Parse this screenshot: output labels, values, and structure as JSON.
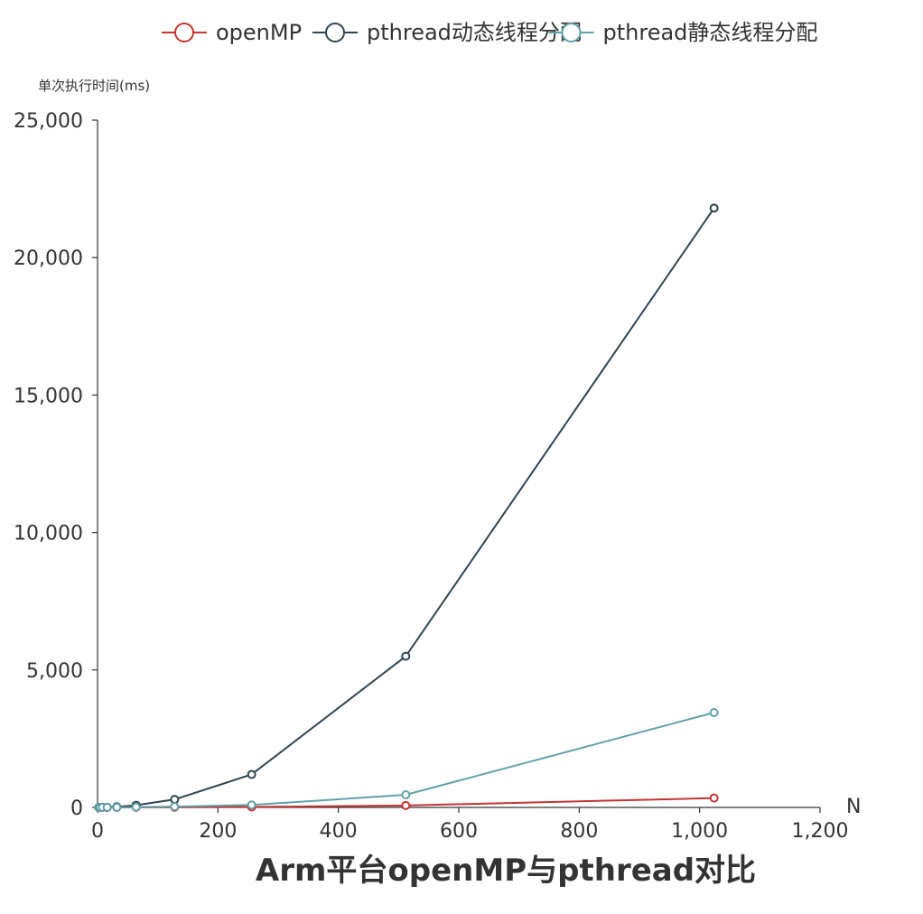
{
  "chart_data": {
    "type": "line",
    "title": "Arm平台openMP与pthread对比",
    "xlabel": "N",
    "ylabel": "单次执行时间(ms)",
    "xlim": [
      0,
      1200
    ],
    "ylim": [
      0,
      25000
    ],
    "x_ticks": [
      0,
      200,
      400,
      600,
      800,
      1000,
      1200
    ],
    "y_ticks": [
      0,
      5000,
      10000,
      15000,
      20000,
      25000
    ],
    "x_tick_labels": [
      "0",
      "200",
      "400",
      "600",
      "800",
      "1,000",
      "1,200"
    ],
    "y_tick_labels": [
      "0",
      "5,000",
      "10,000",
      "15,000",
      "20,000",
      "25,000"
    ],
    "grid": false,
    "legend_position": "top-center",
    "series": [
      {
        "name": "openMP",
        "color": "#c23531",
        "points": [
          [
            2,
            0
          ],
          [
            4,
            0
          ],
          [
            8,
            1
          ],
          [
            16,
            1
          ],
          [
            32,
            2
          ],
          [
            64,
            4
          ],
          [
            128,
            8
          ],
          [
            256,
            18
          ],
          [
            512,
            70
          ],
          [
            1024,
            340
          ]
        ]
      },
      {
        "name": "pthread动态线程分配",
        "color": "#2f4554",
        "points": [
          [
            2,
            1
          ],
          [
            4,
            2
          ],
          [
            8,
            5
          ],
          [
            16,
            10
          ],
          [
            32,
            25
          ],
          [
            64,
            80
          ],
          [
            128,
            290
          ],
          [
            256,
            1200
          ],
          [
            512,
            5500
          ],
          [
            1024,
            21800
          ]
        ]
      },
      {
        "name": "pthread静态线程分配",
        "color": "#61a0a8",
        "points": [
          [
            2,
            0
          ],
          [
            4,
            1
          ],
          [
            8,
            2
          ],
          [
            16,
            3
          ],
          [
            32,
            6
          ],
          [
            64,
            12
          ],
          [
            128,
            30
          ],
          [
            256,
            90
          ],
          [
            512,
            460
          ],
          [
            1024,
            3450
          ]
        ]
      }
    ]
  }
}
